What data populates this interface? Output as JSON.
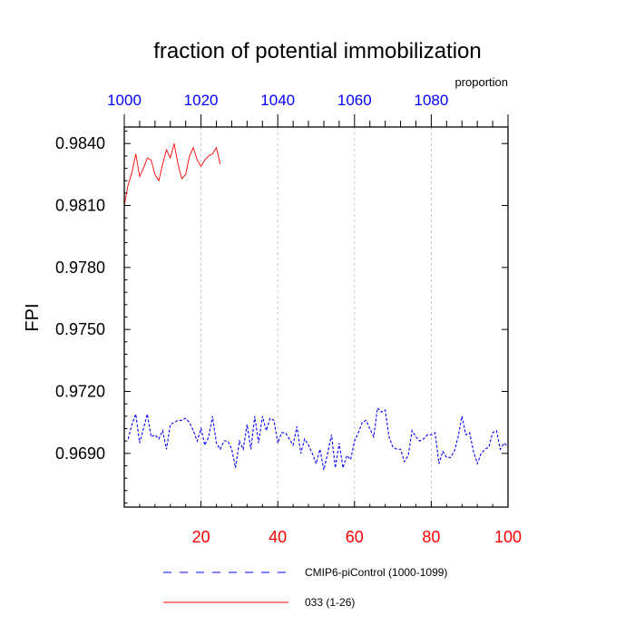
{
  "chart_data": {
    "type": "line",
    "title": "fraction of potential immobilization",
    "ylabel": "FPI",
    "top_axis_label": "proportion",
    "xlim": [
      0,
      100
    ],
    "ylim": [
      0.9664,
      0.9848
    ],
    "x_ticks": [
      20,
      40,
      60,
      80,
      100
    ],
    "x_tick_labels": [
      "20",
      "40",
      "60",
      "80",
      "100"
    ],
    "x_tick_color": "#ff0000",
    "top_ticks": [
      1000,
      1020,
      1040,
      1060,
      1080
    ],
    "top_tick_labels": [
      "1000",
      "1020",
      "1040",
      "1060",
      "1080"
    ],
    "top_tick_color": "#0000ff",
    "top_axis_offset": 1000,
    "y_ticks": [
      0.969,
      0.972,
      0.975,
      0.978,
      0.981,
      0.984
    ],
    "y_tick_labels": [
      "0.9690",
      "0.9720",
      "0.9750",
      "0.9780",
      "0.9810",
      "0.9840"
    ],
    "grid": "vertical dashed at x ticks",
    "legend_position": "bottom",
    "series": [
      {
        "name": "CMIP6-piControl (1000-1099)",
        "color": "#0000ff",
        "style": "dashed",
        "x": [
          1,
          2,
          3,
          4,
          5,
          6,
          7,
          8,
          9,
          10,
          11,
          12,
          13,
          14,
          15,
          16,
          17,
          18,
          19,
          20,
          21,
          22,
          23,
          24,
          25,
          26,
          27,
          28,
          29,
          30,
          31,
          32,
          33,
          34,
          35,
          36,
          37,
          38,
          39,
          40,
          41,
          42,
          43,
          44,
          45,
          46,
          47,
          48,
          49,
          50,
          51,
          52,
          53,
          54,
          55,
          56,
          57,
          58,
          59,
          60,
          61,
          62,
          63,
          64,
          65,
          66,
          67,
          68,
          69,
          70,
          71,
          72,
          73,
          74,
          75,
          76,
          77,
          78,
          79,
          80,
          81,
          82,
          83,
          84,
          85,
          86,
          87,
          88,
          89,
          90,
          91,
          92,
          93,
          94,
          95,
          96,
          97,
          98,
          99,
          100
        ],
        "values": [
          0.9697,
          0.9704,
          0.9709,
          0.9695,
          0.9702,
          0.9709,
          0.9698,
          0.9699,
          0.9697,
          0.9701,
          0.9692,
          0.9704,
          0.9705,
          0.9706,
          0.9706,
          0.9707,
          0.9705,
          0.9701,
          0.9696,
          0.9702,
          0.9694,
          0.9698,
          0.9708,
          0.9695,
          0.9692,
          0.9696,
          0.9696,
          0.9692,
          0.9683,
          0.9696,
          0.9692,
          0.9704,
          0.9692,
          0.9708,
          0.9695,
          0.9708,
          0.9701,
          0.9707,
          0.9706,
          0.9695,
          0.97,
          0.97,
          0.9697,
          0.9694,
          0.9703,
          0.969,
          0.9697,
          0.9694,
          0.969,
          0.9685,
          0.9692,
          0.9682,
          0.969,
          0.9699,
          0.9683,
          0.9695,
          0.9683,
          0.9689,
          0.9687,
          0.9696,
          0.97,
          0.9705,
          0.9706,
          0.9702,
          0.9698,
          0.9712,
          0.971,
          0.9711,
          0.9698,
          0.9693,
          0.9692,
          0.9692,
          0.9686,
          0.9689,
          0.9701,
          0.9698,
          0.9696,
          0.9697,
          0.9699,
          0.9699,
          0.97,
          0.9685,
          0.9691,
          0.9688,
          0.9688,
          0.9691,
          0.9698,
          0.9708,
          0.9699,
          0.97,
          0.9691,
          0.9685,
          0.969,
          0.9692,
          0.9693,
          0.97,
          0.9701,
          0.9692,
          0.9695,
          0.9693
        ]
      },
      {
        "name": "033 (1-26)",
        "color": "#ff0000",
        "style": "solid",
        "x": [
          0,
          1,
          2,
          3,
          4,
          5,
          6,
          7,
          8,
          9,
          10,
          11,
          12,
          13,
          14,
          15,
          16,
          17,
          18,
          19,
          20,
          21,
          22,
          23,
          24,
          25
        ],
        "values": [
          0.981,
          0.982,
          0.9826,
          0.9835,
          0.9824,
          0.9828,
          0.9833,
          0.9832,
          0.9825,
          0.9822,
          0.983,
          0.9837,
          0.9833,
          0.984,
          0.983,
          0.9823,
          0.9825,
          0.9834,
          0.9838,
          0.9832,
          0.9829,
          0.9832,
          0.9834,
          0.9835,
          0.9838,
          0.983
        ]
      }
    ]
  }
}
